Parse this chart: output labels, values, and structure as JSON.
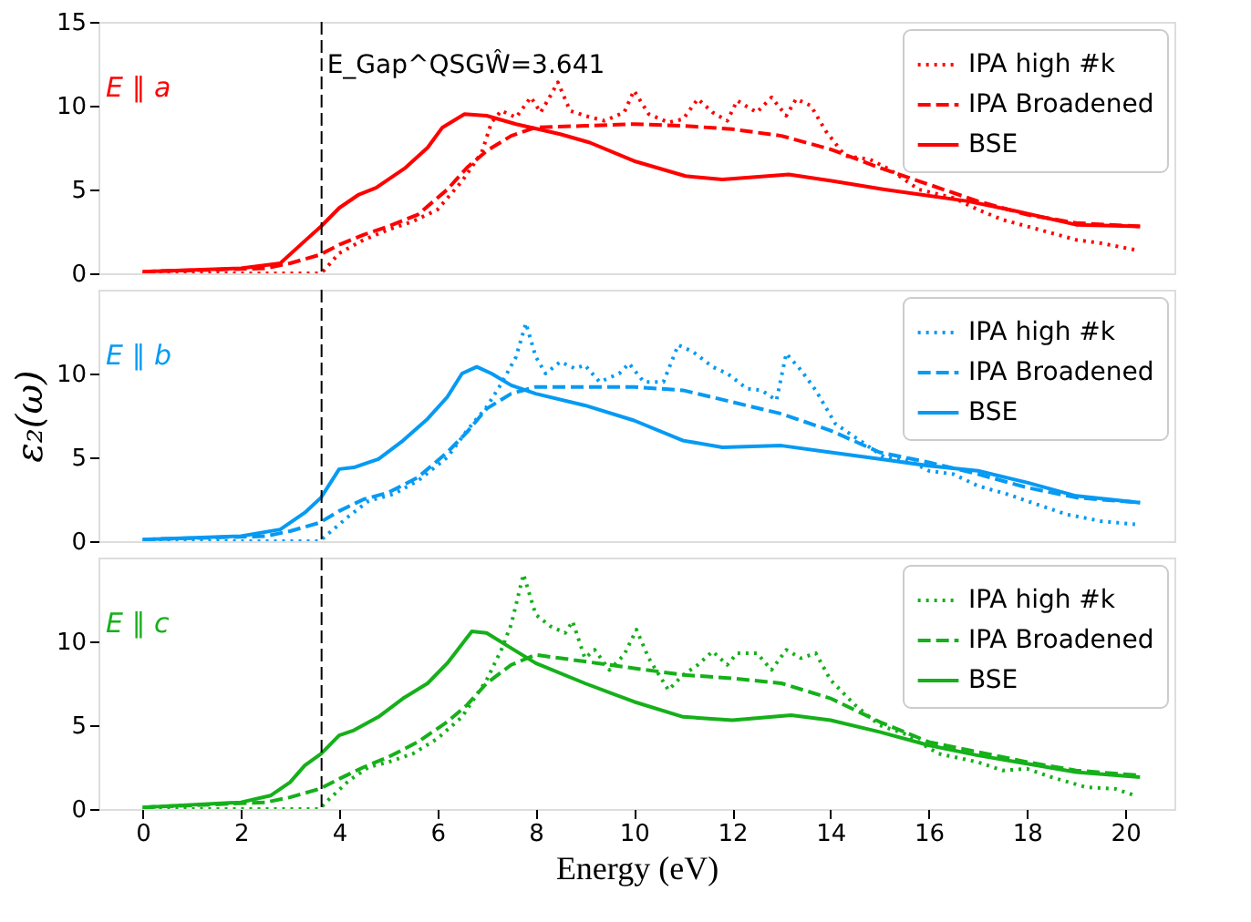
{
  "chart_data": [
    {
      "type": "line",
      "xlim": [
        -0.9,
        21.0
      ],
      "ylim": [
        0,
        15
      ],
      "xticks": [
        0,
        2,
        4,
        6,
        8,
        10,
        12,
        14,
        16,
        18,
        20
      ],
      "yticks": [
        0,
        5,
        10,
        15
      ],
      "tick_labels": "y",
      "legend": "top right",
      "annotations": [
        "E ∥ a"
      ],
      "ref_lines": [
        {
          "axis": "x",
          "value": 3.641,
          "label": "E_Gap^QSGŴ=3.641",
          "color": "#000000",
          "line_style": "dashed"
        }
      ],
      "series": [
        {
          "name": "IPA high #k",
          "color": "#ff0000",
          "line_style": "dotted",
          "x": [
            0,
            3.6,
            3.7,
            4.0,
            4.5,
            5.0,
            5.5,
            6.0,
            6.5,
            6.9,
            7.1,
            7.3,
            7.6,
            7.9,
            8.1,
            8.3,
            8.45,
            8.7,
            9.0,
            9.4,
            9.8,
            10.0,
            10.3,
            10.7,
            11.0,
            11.3,
            11.6,
            11.9,
            12.1,
            12.5,
            12.8,
            13.1,
            13.3,
            13.6,
            13.9,
            14.3,
            14.8,
            15.2,
            15.8,
            16.5,
            17.0,
            17.5,
            18.0,
            18.5,
            19.0,
            19.5,
            20.2
          ],
          "values": [
            0,
            0,
            0.2,
            1.2,
            2.0,
            2.6,
            3.1,
            3.8,
            5.5,
            7.2,
            9.0,
            9.7,
            9.3,
            10.5,
            9.6,
            10.6,
            11.4,
            9.7,
            9.4,
            9.1,
            9.6,
            10.9,
            9.5,
            9.0,
            9.2,
            10.4,
            9.6,
            9.1,
            10.3,
            9.6,
            10.5,
            9.4,
            10.4,
            10.0,
            8.5,
            7.0,
            6.8,
            6.2,
            5.0,
            4.5,
            3.8,
            3.2,
            2.8,
            2.4,
            2.0,
            1.8,
            1.4
          ]
        },
        {
          "name": "IPA Broadened",
          "color": "#ff0000",
          "line_style": "dashed",
          "x": [
            0,
            2.5,
            3.0,
            3.6,
            4.0,
            4.5,
            5.0,
            5.6,
            6.2,
            6.6,
            7.0,
            7.5,
            8.0,
            9.0,
            10.0,
            11.0,
            12.0,
            13.0,
            14.0,
            15.0,
            16.0,
            17.0,
            18.0,
            19.0,
            20.3
          ],
          "values": [
            0.1,
            0.3,
            0.6,
            1.1,
            1.7,
            2.3,
            2.8,
            3.5,
            5.0,
            6.3,
            7.3,
            8.2,
            8.7,
            8.8,
            8.9,
            8.8,
            8.6,
            8.2,
            7.4,
            6.3,
            5.3,
            4.3,
            3.5,
            3.0,
            2.8
          ]
        },
        {
          "name": "BSE",
          "color": "#ff0000",
          "line_style": "solid",
          "x": [
            0,
            2.0,
            2.8,
            3.25,
            3.63,
            4.0,
            4.4,
            4.75,
            5.35,
            5.8,
            6.1,
            6.55,
            7.0,
            7.6,
            8.5,
            9.1,
            10.0,
            11.05,
            11.8,
            13.15,
            14.05,
            15.1,
            16.8,
            17.8,
            19.0,
            20.3
          ],
          "values": [
            0.1,
            0.3,
            0.6,
            1.8,
            2.8,
            3.9,
            4.7,
            5.1,
            6.3,
            7.5,
            8.7,
            9.5,
            9.4,
            8.9,
            8.3,
            7.8,
            6.7,
            5.8,
            5.6,
            5.9,
            5.5,
            5.0,
            4.3,
            3.7,
            2.9,
            2.8
          ]
        }
      ]
    },
    {
      "type": "line",
      "xlim": [
        -0.9,
        21.0
      ],
      "ylim": [
        0,
        15
      ],
      "xticks": [
        0,
        2,
        4,
        6,
        8,
        10,
        12,
        14,
        16,
        18,
        20
      ],
      "yticks": [
        0,
        5,
        10
      ],
      "tick_labels": "y",
      "legend": "top right",
      "ylabel": "ε₂(ω)",
      "annotations": [
        "E ∥ b"
      ],
      "ref_lines": [
        {
          "axis": "x",
          "value": 3.641,
          "color": "#000000",
          "line_style": "dashed"
        }
      ],
      "series": [
        {
          "name": "IPA high #k",
          "color": "#069af3",
          "line_style": "dotted",
          "x": [
            0,
            3.6,
            3.8,
            4.2,
            4.6,
            5.1,
            5.6,
            6.2,
            6.6,
            7.0,
            7.3,
            7.6,
            7.8,
            8.0,
            8.2,
            8.5,
            8.8,
            9.0,
            9.3,
            9.7,
            9.9,
            10.2,
            10.6,
            10.9,
            11.2,
            11.6,
            11.9,
            12.3,
            12.6,
            12.9,
            13.1,
            13.4,
            13.7,
            14.1,
            14.6,
            15.1,
            15.6,
            16.0,
            16.5,
            17.0,
            17.6,
            18.2,
            18.8,
            19.5,
            20.2
          ],
          "values": [
            0,
            0,
            0.5,
            1.5,
            2.4,
            2.8,
            3.6,
            5.0,
            6.6,
            8.0,
            9.4,
            11.0,
            13.0,
            11.0,
            10.0,
            10.7,
            10.3,
            10.5,
            9.5,
            10.0,
            10.6,
            9.5,
            9.5,
            11.7,
            11.3,
            10.4,
            10.0,
            9.1,
            9.0,
            8.4,
            11.2,
            10.2,
            9.0,
            7.0,
            6.0,
            5.0,
            4.8,
            4.2,
            4.0,
            3.3,
            2.8,
            2.2,
            1.6,
            1.2,
            1.0
          ]
        },
        {
          "name": "IPA Broadened",
          "color": "#069af3",
          "line_style": "dashed",
          "x": [
            0,
            2.5,
            3.0,
            3.6,
            4.0,
            4.5,
            5.0,
            5.6,
            6.2,
            6.6,
            7.0,
            7.5,
            8.0,
            9.0,
            10.0,
            11.0,
            12.0,
            13.0,
            14.0,
            15.0,
            16.0,
            17.0,
            18.0,
            19.0,
            20.3
          ],
          "values": [
            0.1,
            0.3,
            0.6,
            1.1,
            1.8,
            2.5,
            2.9,
            3.8,
            5.3,
            6.5,
            7.9,
            8.8,
            9.2,
            9.2,
            9.2,
            9.0,
            8.3,
            7.6,
            6.6,
            5.3,
            4.7,
            4.0,
            3.2,
            2.6,
            2.3
          ]
        },
        {
          "name": "BSE",
          "color": "#069af3",
          "line_style": "solid",
          "x": [
            0,
            2.0,
            2.8,
            3.3,
            3.63,
            4.0,
            4.3,
            4.8,
            5.3,
            5.8,
            6.2,
            6.5,
            6.8,
            7.1,
            7.5,
            8.0,
            9.0,
            10.0,
            11.0,
            11.8,
            13.0,
            14.0,
            15.0,
            16.0,
            17.0,
            18.0,
            19.0,
            20.3
          ],
          "values": [
            0.1,
            0.3,
            0.7,
            1.7,
            2.6,
            4.3,
            4.4,
            4.9,
            6.0,
            7.3,
            8.6,
            10.0,
            10.4,
            10.0,
            9.3,
            8.8,
            8.1,
            7.2,
            6.0,
            5.6,
            5.7,
            5.3,
            4.9,
            4.5,
            4.2,
            3.5,
            2.7,
            2.3
          ]
        }
      ]
    },
    {
      "type": "line",
      "xlim": [
        -0.9,
        21.0
      ],
      "ylim": [
        0,
        15
      ],
      "xticks": [
        0,
        2,
        4,
        6,
        8,
        10,
        12,
        14,
        16,
        18,
        20
      ],
      "yticks": [
        0,
        5,
        10
      ],
      "legend": "top right",
      "xlabel": "Energy (eV)",
      "annotations": [
        "E ∥ c"
      ],
      "ref_lines": [
        {
          "axis": "x",
          "value": 3.641,
          "color": "#000000",
          "line_style": "dashed"
        }
      ],
      "series": [
        {
          "name": "IPA high #k",
          "color": "#15b01a",
          "line_style": "dotted",
          "x": [
            0,
            3.6,
            3.8,
            4.2,
            4.6,
            5.0,
            5.5,
            6.0,
            6.5,
            7.0,
            7.3,
            7.5,
            7.75,
            8.0,
            8.3,
            8.6,
            8.75,
            9.0,
            9.2,
            9.5,
            9.8,
            10.05,
            10.3,
            10.7,
            11.0,
            11.3,
            11.6,
            11.9,
            12.1,
            12.5,
            12.8,
            13.1,
            13.4,
            13.7,
            14.0,
            14.5,
            15.0,
            15.5,
            16.2,
            17.0,
            17.5,
            18.0,
            18.5,
            19.2,
            19.8,
            20.2
          ],
          "values": [
            0,
            0,
            0.6,
            1.7,
            2.5,
            2.8,
            3.3,
            4.2,
            5.5,
            7.7,
            9.5,
            11.0,
            14.0,
            11.6,
            10.9,
            10.5,
            11.2,
            9.0,
            9.5,
            8.3,
            9.2,
            10.7,
            9.0,
            7.1,
            8.0,
            8.6,
            9.4,
            8.6,
            9.3,
            9.3,
            8.3,
            9.5,
            9.0,
            9.3,
            7.7,
            6.2,
            5.0,
            4.5,
            3.3,
            2.8,
            2.3,
            2.4,
            1.9,
            1.3,
            1.2,
            0.8
          ]
        },
        {
          "name": "IPA Broadened",
          "color": "#15b01a",
          "line_style": "dashed",
          "x": [
            0,
            2.5,
            3.0,
            3.6,
            4.0,
            4.5,
            5.0,
            5.6,
            6.2,
            6.6,
            7.0,
            7.5,
            8.0,
            9.0,
            10.0,
            11.0,
            12.0,
            13.0,
            14.0,
            15.0,
            16.0,
            17.0,
            18.0,
            19.0,
            20.3
          ],
          "values": [
            0.1,
            0.4,
            0.7,
            1.2,
            1.8,
            2.5,
            3.1,
            4.0,
            5.2,
            6.2,
            7.5,
            8.6,
            9.2,
            8.8,
            8.4,
            8.0,
            7.8,
            7.5,
            6.6,
            5.2,
            4.0,
            3.4,
            2.8,
            2.3,
            2.0
          ]
        },
        {
          "name": "BSE",
          "color": "#15b01a",
          "line_style": "solid",
          "x": [
            0,
            2.0,
            2.6,
            3.0,
            3.3,
            3.63,
            4.0,
            4.3,
            4.8,
            5.3,
            5.8,
            6.2,
            6.7,
            7.0,
            7.5,
            8.0,
            9.0,
            10.0,
            11.0,
            12.0,
            13.2,
            14.0,
            15.0,
            16.0,
            17.0,
            18.0,
            19.0,
            20.3
          ],
          "values": [
            0.1,
            0.4,
            0.8,
            1.6,
            2.6,
            3.3,
            4.4,
            4.7,
            5.5,
            6.6,
            7.5,
            8.7,
            10.6,
            10.5,
            9.6,
            8.7,
            7.5,
            6.4,
            5.5,
            5.3,
            5.6,
            5.3,
            4.6,
            3.8,
            3.2,
            2.7,
            2.2,
            1.9
          ]
        }
      ]
    }
  ]
}
